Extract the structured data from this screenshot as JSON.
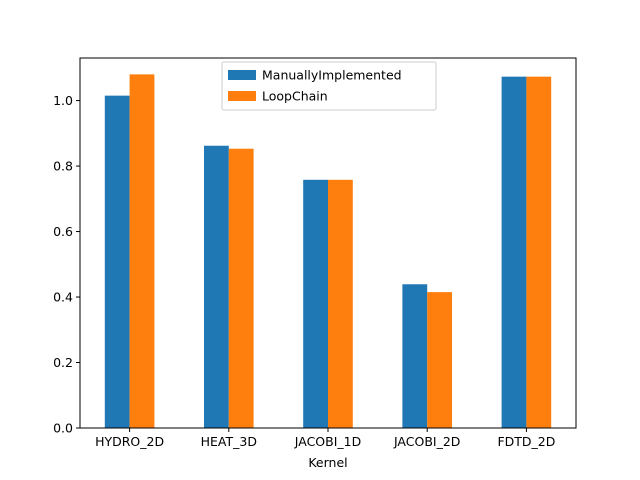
{
  "chart_data": {
    "type": "bar",
    "title": "",
    "xlabel": "Kernel",
    "ylabel": "",
    "categories": [
      "HYDRO_2D",
      "HEAT_3D",
      "JACOBI_1D",
      "JACOBI_2D",
      "FDTD_2D"
    ],
    "series": [
      {
        "name": " ManuallyImplemented",
        "color": "#1f77b4",
        "values": [
          1.015,
          0.862,
          0.758,
          0.439,
          1.073
        ]
      },
      {
        "name": " LoopChain",
        "color": "#ff7f0e",
        "values": [
          1.08,
          0.853,
          0.758,
          0.415,
          1.073
        ]
      }
    ],
    "ylim": [
      0,
      1.13
    ],
    "yticks": [
      0.0,
      0.2,
      0.4,
      0.6,
      0.8,
      1.0
    ],
    "ytick_labels": [
      "0.0",
      "0.2",
      "0.4",
      "0.6",
      "0.8",
      "1.0"
    ],
    "grid": false,
    "legend_position": "top-center"
  }
}
